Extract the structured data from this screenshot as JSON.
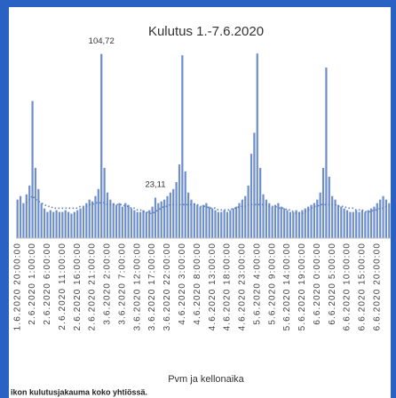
{
  "chart_data": {
    "type": "bar",
    "title": "Kulutus 1.-7.6.2020",
    "x_label": "Pvm ja kellonaika",
    "caption": "ikon kulutusjakauma koko yhtiössä.",
    "ylim": [
      0,
      110
    ],
    "categories": [
      "1.6.2020 20:00:00",
      null,
      null,
      null,
      null,
      "2.6.2020 1:00:00",
      null,
      null,
      null,
      null,
      "2.6.2020 6:00:00",
      null,
      null,
      null,
      null,
      "2.6.2020 11:00:00",
      null,
      null,
      null,
      null,
      "2.6.2020 16:00:00",
      null,
      null,
      null,
      null,
      "2.6.2020 21:00:00",
      null,
      null,
      null,
      null,
      "3.6.2020 2:00:00",
      null,
      null,
      null,
      null,
      "3.6.2020 7:00:00",
      null,
      null,
      null,
      null,
      "3.6.2020 12:00:00",
      null,
      null,
      null,
      null,
      "3.6.2020 17:00:00",
      null,
      null,
      null,
      null,
      "3.6.2020 22:00:00",
      null,
      null,
      null,
      null,
      "4.6.2020 3:00:00",
      null,
      null,
      null,
      null,
      "4.6.2020 8:00:00",
      null,
      null,
      null,
      null,
      "4.6.2020 13:00:00",
      null,
      null,
      null,
      null,
      "4.6.2020 18:00:00",
      null,
      null,
      null,
      null,
      "4.6.2020 23:00:00",
      null,
      null,
      null,
      null,
      "5.6.2020 4:00:00",
      null,
      null,
      null,
      null,
      "5.6.2020 9:00:00",
      null,
      null,
      null,
      null,
      "5.6.2020 14:00:00",
      null,
      null,
      null,
      null,
      "5.6.2020 19:00:00",
      null,
      null,
      null,
      null,
      "6.6.2020 0:00:00",
      null,
      null,
      null,
      null,
      "6.6.2020 5:00:00",
      null,
      null,
      null,
      null,
      "6.6.2020 10:00:00",
      null,
      null,
      null,
      null,
      "6.6.2020 15:00:00",
      null,
      null,
      null,
      null,
      "6.6.2020 20:00:00",
      null,
      null,
      null,
      null
    ],
    "series": [
      {
        "color": "#6f8fcb",
        "style": "bar",
        "values": [
          22,
          24,
          20,
          25,
          30,
          78,
          40,
          28,
          20,
          17,
          15,
          16,
          15,
          16,
          15,
          15,
          16,
          15,
          14,
          15,
          16,
          17,
          18,
          20,
          22,
          21,
          24,
          28,
          104.72,
          40,
          26,
          22,
          20,
          19,
          20,
          18,
          20,
          19,
          17,
          16,
          15,
          15,
          16,
          15,
          16,
          18,
          23.11,
          20,
          21,
          22,
          24,
          26,
          28,
          32,
          42,
          104,
          38,
          26,
          22,
          20,
          19,
          18,
          19,
          20,
          18,
          17,
          16,
          15,
          15,
          16,
          15,
          16,
          17,
          18,
          20,
          22,
          24,
          30,
          48,
          60,
          105,
          40,
          25,
          22,
          20,
          18,
          19,
          20,
          18,
          17,
          16,
          15,
          15,
          16,
          15,
          16,
          17,
          18,
          19,
          20,
          22,
          26,
          40,
          97,
          35,
          24,
          22,
          19,
          18,
          17,
          16,
          15,
          15,
          16,
          15,
          16,
          15,
          16,
          17,
          18,
          20,
          22,
          24,
          22,
          20
        ],
        "value_labels": [
          null,
          null,
          null,
          null,
          null,
          null,
          null,
          null,
          null,
          null,
          null,
          null,
          null,
          null,
          null,
          null,
          null,
          null,
          null,
          null,
          null,
          null,
          null,
          null,
          null,
          null,
          null,
          null,
          "104,72",
          null,
          null,
          null,
          null,
          null,
          null,
          null,
          null,
          null,
          null,
          null,
          null,
          null,
          null,
          null,
          null,
          null,
          "23,11",
          null,
          null,
          null,
          null,
          null,
          null,
          null,
          null,
          null,
          null,
          null,
          null,
          null,
          null,
          null,
          null,
          null,
          null,
          null,
          null,
          null,
          null,
          null,
          null,
          null,
          null,
          null,
          null,
          null,
          null,
          null,
          null,
          null,
          null,
          null,
          null,
          null,
          null,
          null,
          null,
          null,
          null,
          null,
          null,
          null,
          null,
          null,
          null,
          null,
          null,
          null,
          null,
          null,
          null,
          null,
          null,
          null,
          null,
          null,
          null,
          null,
          null,
          null,
          null,
          null,
          null,
          null,
          null,
          null,
          null,
          null,
          null,
          null,
          null,
          null,
          null,
          null,
          null
        ]
      },
      {
        "color": "#5b7fbf",
        "style": "dotted-line",
        "values": [
          null,
          null,
          null,
          20,
          22,
          24,
          22,
          21,
          20,
          19,
          18,
          18,
          17,
          17,
          17,
          17,
          17,
          17,
          17,
          17,
          17,
          18,
          18,
          18,
          19,
          19,
          20,
          20,
          20,
          20,
          19,
          19,
          19,
          19,
          19,
          19,
          18,
          18,
          17,
          17,
          16,
          16,
          15,
          15,
          14,
          14,
          15,
          16,
          17,
          18,
          18,
          19,
          19,
          19,
          19,
          19,
          19,
          19,
          19,
          19,
          19,
          18,
          18,
          18,
          17,
          17,
          17,
          16,
          16,
          16,
          16,
          16,
          17,
          17,
          18,
          18,
          18,
          19,
          19,
          19,
          19,
          19,
          19,
          19,
          18,
          18,
          18,
          17,
          17,
          17,
          16,
          16,
          15,
          14,
          14,
          14,
          15,
          16,
          17,
          18,
          18,
          19,
          19,
          19,
          19,
          19,
          19,
          18,
          18,
          18,
          17,
          17,
          17,
          16,
          16,
          16,
          15,
          15,
          15,
          16,
          16,
          17,
          17,
          18,
          18
        ]
      }
    ]
  }
}
